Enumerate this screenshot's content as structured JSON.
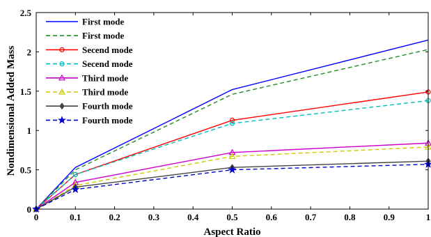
{
  "chart_data": {
    "type": "line",
    "title": "",
    "xlabel": "Aspect Ratio",
    "ylabel": "Nondimensional Added Mass",
    "xlim": [
      0,
      1
    ],
    "ylim": [
      0,
      2.5
    ],
    "xticks": [
      0,
      0.1,
      0.2,
      0.3,
      0.4,
      0.5,
      0.6,
      0.7,
      0.8,
      0.9,
      1
    ],
    "xtick_labels": [
      "0",
      "0.1",
      "0.2",
      "0.3",
      "0.4",
      "0.5",
      "0.6",
      "0.7",
      "0.8",
      "0.9",
      "1"
    ],
    "yticks": [
      0,
      0.5,
      1,
      1.5,
      2,
      2.5
    ],
    "ytick_labels": [
      "0",
      "0.5",
      "1",
      "1.5",
      "2",
      "2.5"
    ],
    "grid": false,
    "legend_position": "top-left",
    "x": [
      0,
      0.1,
      0.5,
      1
    ],
    "series": [
      {
        "name": "First mode",
        "values": [
          0,
          0.53,
          1.52,
          2.15
        ],
        "color": "#0000ff",
        "dash": "solid",
        "marker": "none"
      },
      {
        "name": "First mode",
        "values": [
          0,
          0.5,
          1.46,
          2.03
        ],
        "color": "#228b22",
        "dash": "dashed",
        "marker": "none"
      },
      {
        "name": "Secend mode",
        "values": [
          0,
          0.44,
          1.13,
          1.49
        ],
        "color": "#ff0000",
        "dash": "solid",
        "marker": "circle"
      },
      {
        "name": "Secend mode",
        "values": [
          0,
          0.44,
          1.09,
          1.38
        ],
        "color": "#00bfbf",
        "dash": "dashed",
        "marker": "circle"
      },
      {
        "name": "Third mode",
        "values": [
          0,
          0.34,
          0.72,
          0.84
        ],
        "color": "#cc00cc",
        "dash": "solid",
        "marker": "triangle"
      },
      {
        "name": "Third mode",
        "values": [
          0,
          0.3,
          0.67,
          0.79
        ],
        "color": "#cccc00",
        "dash": "dashed",
        "marker": "triangle"
      },
      {
        "name": "Fourth mode",
        "values": [
          0,
          0.28,
          0.53,
          0.61
        ],
        "color": "#444444",
        "dash": "solid",
        "marker": "diamond"
      },
      {
        "name": "Fourth mode",
        "values": [
          0,
          0.25,
          0.5,
          0.57
        ],
        "color": "#0000cc",
        "dash": "dashed",
        "marker": "star"
      }
    ]
  }
}
